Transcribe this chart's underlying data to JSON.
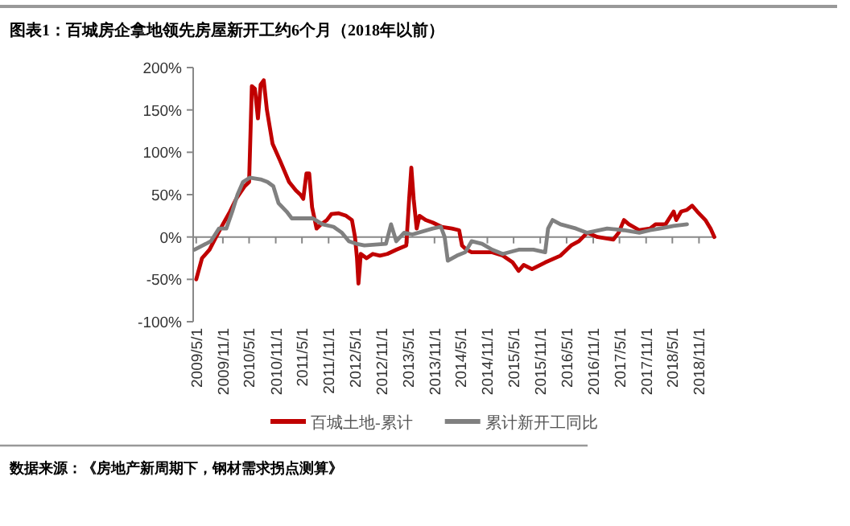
{
  "chart_data": {
    "type": "line",
    "title": "图表1：百城房企拿地领先房屋新开工约6个月（2018年以前）",
    "xlim": [
      "2009-04-10",
      "2019-03-01"
    ],
    "xticks": [
      {
        "value": "2009-05-01",
        "label": "2009/5/1"
      },
      {
        "value": "2009-11-01",
        "label": "2009/11/1"
      },
      {
        "value": "2010-05-01",
        "label": "2010/5/1"
      },
      {
        "value": "2010-11-01",
        "label": "2010/11/1"
      },
      {
        "value": "2011-05-01",
        "label": "2011/5/1"
      },
      {
        "value": "2011-11-01",
        "label": "2011/11/1"
      },
      {
        "value": "2012-05-01",
        "label": "2012/5/1"
      },
      {
        "value": "2012-11-01",
        "label": "2012/11/1"
      },
      {
        "value": "2013-05-01",
        "label": "2013/5/1"
      },
      {
        "value": "2013-11-01",
        "label": "2013/11/1"
      },
      {
        "value": "2014-05-01",
        "label": "2014/5/1"
      },
      {
        "value": "2014-11-01",
        "label": "2014/11/1"
      },
      {
        "value": "2015-05-01",
        "label": "2015/5/1"
      },
      {
        "value": "2015-11-01",
        "label": "2015/11/1"
      },
      {
        "value": "2016-05-01",
        "label": "2016/5/1"
      },
      {
        "value": "2016-11-01",
        "label": "2016/11/1"
      },
      {
        "value": "2017-05-01",
        "label": "2017/5/1"
      },
      {
        "value": "2017-11-01",
        "label": "2017/11/1"
      },
      {
        "value": "2018-05-01",
        "label": "2018/5/1"
      },
      {
        "value": "2018-11-01",
        "label": "2018/11/1"
      }
    ],
    "ylim": [
      -100,
      200
    ],
    "yticks": [
      {
        "value": -100,
        "label": "-100%"
      },
      {
        "value": -50,
        "label": "-50%"
      },
      {
        "value": 0,
        "label": "0%"
      },
      {
        "value": 50,
        "label": "50%"
      },
      {
        "value": 100,
        "label": "100%"
      },
      {
        "value": 150,
        "label": "150%"
      },
      {
        "value": 200,
        "label": "200%"
      }
    ],
    "ref_lines": [
      {
        "axis": "y",
        "value": 0,
        "color": "#888888"
      }
    ],
    "grid": false,
    "legend": "bottom",
    "line_style": "solid",
    "marker": "none",
    "annotations": [
      "数据来源：《房地产新周期下，钢材需求拐点测算》"
    ],
    "series": [
      {
        "name": "百城土地-累计",
        "color": "#c00000",
        "x": [
          "2009-05-01",
          "2009-06-10",
          "2009-08-01",
          "2009-09-15",
          "2009-11-01",
          "2009-12-20",
          "2010-02-01",
          "2010-04-01",
          "2010-05-01",
          "2010-05-20",
          "2010-06-10",
          "2010-07-01",
          "2010-07-20",
          "2010-08-10",
          "2010-09-01",
          "2010-10-10",
          "2010-12-01",
          "2011-02-01",
          "2011-03-20",
          "2011-04-20",
          "2011-05-10",
          "2011-06-01",
          "2011-06-20",
          "2011-07-10",
          "2011-08-10",
          "2011-09-10",
          "2011-10-20",
          "2011-11-20",
          "2012-01-10",
          "2012-03-01",
          "2012-04-10",
          "2012-05-01",
          "2012-05-15",
          "2012-05-25",
          "2012-06-10",
          "2012-07-20",
          "2012-09-01",
          "2012-10-20",
          "2012-12-10",
          "2013-02-10",
          "2013-04-20",
          "2013-05-10",
          "2013-05-25",
          "2013-06-10",
          "2013-07-01",
          "2013-07-20",
          "2013-09-01",
          "2013-10-20",
          "2013-12-20",
          "2014-03-01",
          "2014-04-20",
          "2014-05-10",
          "2014-06-10",
          "2014-07-15",
          "2014-12-05",
          "2015-02-15",
          "2015-04-25",
          "2015-06-05",
          "2015-07-10",
          "2015-09-05",
          "2015-12-05",
          "2016-03-20",
          "2016-06-01",
          "2016-07-25",
          "2016-09-20",
          "2016-12-01",
          "2017-03-20",
          "2017-04-25",
          "2017-06-01",
          "2017-07-05",
          "2017-09-15",
          "2017-11-28",
          "2018-01-05",
          "2018-03-15",
          "2018-05-10",
          "2018-05-28",
          "2018-07-01",
          "2018-08-10",
          "2018-09-15",
          "2018-10-20",
          "2018-12-15",
          "2019-01-20",
          "2019-02-15"
        ],
        "values": [
          -50,
          -25,
          -15,
          0,
          15,
          30,
          45,
          60,
          65,
          178,
          175,
          140,
          180,
          185,
          150,
          110,
          90,
          65,
          55,
          50,
          45,
          75,
          75,
          35,
          10,
          15,
          20,
          27,
          28,
          25,
          20,
          0,
          -25,
          -55,
          -20,
          -25,
          -20,
          -22,
          -20,
          -15,
          -10,
          45,
          82,
          45,
          10,
          25,
          20,
          17,
          12,
          10,
          8,
          -10,
          -15,
          -18,
          -18,
          -22,
          -30,
          -40,
          -33,
          -38,
          -30,
          -22,
          -10,
          -5,
          5,
          0,
          -3,
          5,
          20,
          15,
          8,
          10,
          15,
          15,
          30,
          20,
          30,
          32,
          37,
          30,
          20,
          10,
          0
        ]
      },
      {
        "name": "累计新开工同比",
        "color": "#808080",
        "x": [
          "2009-04-20",
          "2009-06-15",
          "2009-08-10",
          "2009-10-05",
          "2009-11-25",
          "2010-01-05",
          "2010-02-10",
          "2010-03-20",
          "2010-05-05",
          "2010-07-20",
          "2010-09-05",
          "2010-10-15",
          "2010-11-20",
          "2011-01-15",
          "2011-02-20",
          "2011-07-15",
          "2011-09-20",
          "2011-12-05",
          "2012-02-01",
          "2012-03-20",
          "2012-05-10",
          "2012-07-05",
          "2012-12-01",
          "2013-01-05",
          "2013-02-10",
          "2013-04-05",
          "2013-06-01",
          "2013-10-20",
          "2013-12-15",
          "2014-01-10",
          "2014-02-01",
          "2014-04-05",
          "2014-06-01",
          "2014-07-15",
          "2014-09-25",
          "2014-12-05",
          "2015-02-15",
          "2015-06-05",
          "2015-09-15",
          "2015-12-05",
          "2015-12-25",
          "2016-01-25",
          "2016-03-20",
          "2016-07-05",
          "2016-09-20",
          "2017-02-05",
          "2017-06-01",
          "2017-09-15",
          "2017-11-28",
          "2018-02-05",
          "2018-05-10",
          "2018-08-10"
        ],
        "values": [
          -15,
          -10,
          -5,
          10,
          10,
          30,
          50,
          65,
          70,
          68,
          65,
          60,
          40,
          30,
          22,
          22,
          15,
          12,
          5,
          -5,
          -8,
          -10,
          -8,
          15,
          -5,
          5,
          3,
          10,
          12,
          0,
          -28,
          -22,
          -18,
          -5,
          -8,
          -15,
          -20,
          -15,
          -15,
          -18,
          10,
          20,
          15,
          10,
          5,
          10,
          8,
          5,
          8,
          10,
          13,
          15
        ]
      }
    ]
  }
}
